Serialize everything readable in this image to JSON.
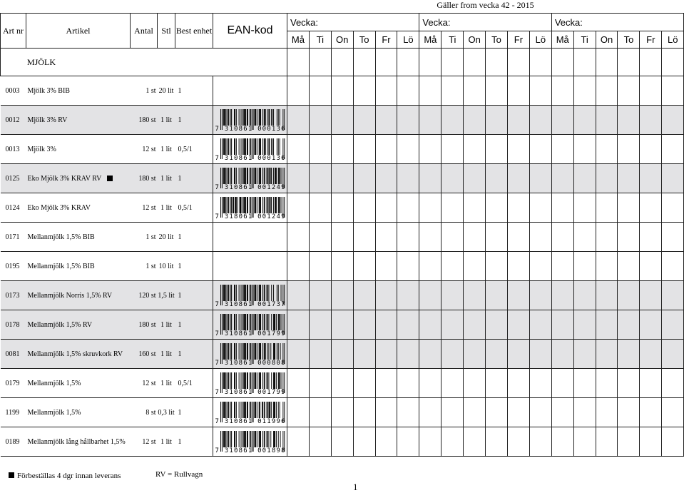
{
  "valid_text": "Gäller from vecka 42 - 2015",
  "headers": {
    "art": "Art nr",
    "artikel": "Artikel",
    "antal": "Antal",
    "stl": "Stl",
    "best": "Best enhet",
    "ean": "EAN-kod",
    "vecka": [
      "Vecka:",
      "Vecka:",
      "Vecka:"
    ],
    "days": [
      "Må",
      "Ti",
      "On",
      "To",
      "Fr",
      "Lö",
      "Må",
      "Ti",
      "On",
      "To",
      "Fr",
      "Lö",
      "Må",
      "Ti",
      "On",
      "To",
      "Fr",
      "Lö"
    ]
  },
  "section": "MJÖLK",
  "rows": [
    {
      "art": "0003",
      "name": "Mjölk 3% BIB",
      "antal": "1 st",
      "stl": "20 lit",
      "best": "1",
      "ean": "",
      "shaded": false,
      "mark": false
    },
    {
      "art": "0012",
      "name": "Mjölk 3% RV",
      "antal": "180 st",
      "stl": "1 lit",
      "best": "1",
      "ean": "7310861000136",
      "shaded": true,
      "mark": false
    },
    {
      "art": "0013",
      "name": "Mjölk 3%",
      "antal": "12 st",
      "stl": "1 lit",
      "best": "0,5/1",
      "ean": "7310861000136",
      "shaded": false,
      "mark": false
    },
    {
      "art": "0125",
      "name": "Eko Mjölk 3% KRAV RV",
      "antal": "180 st",
      "stl": "1 lit",
      "best": "1",
      "ean": "7310861001249",
      "shaded": true,
      "mark": true
    },
    {
      "art": "0124",
      "name": "Eko Mjölk 3% KRAV",
      "antal": "12 st",
      "stl": "1 lit",
      "best": "0,5/1",
      "ean": "7318061001249",
      "shaded": false,
      "mark": false
    },
    {
      "art": "0171",
      "name": "Mellanmjölk 1,5% BIB",
      "antal": "1 st",
      "stl": "20 lit",
      "best": "1",
      "ean": "",
      "shaded": false,
      "mark": false
    },
    {
      "art": "0195",
      "name": "Mellanmjölk 1,5% BIB",
      "antal": "1 st",
      "stl": "10 lit",
      "best": "1",
      "ean": "",
      "shaded": false,
      "mark": false
    },
    {
      "art": "0173",
      "name": "Mellanmjölk Norris 1,5% RV",
      "antal": "120 st",
      "stl": "1,5 lit",
      "best": "1",
      "ean": "7310861001737",
      "shaded": true,
      "mark": false,
      "stl_wrap": true
    },
    {
      "art": "0178",
      "name": "Mellanmjölk 1,5% RV",
      "antal": "180 st",
      "stl": "1 lit",
      "best": "1",
      "ean": "7310861001799",
      "shaded": true,
      "mark": false
    },
    {
      "art": "0081",
      "name": "Mellanmjölk 1,5% skruvkork RV",
      "antal": "160 st",
      "stl": "1 lit",
      "best": "1",
      "ean": "7310861000808",
      "shaded": true,
      "mark": false
    },
    {
      "art": "0179",
      "name": "Mellanmjölk 1,5%",
      "antal": "12 st",
      "stl": "1 lit",
      "best": "0,5/1",
      "ean": "7310861001799",
      "shaded": false,
      "mark": false
    },
    {
      "art": "1199",
      "name": "Mellanmjölk 1,5%",
      "antal": "8 st",
      "stl": "0,3 lit",
      "best": "1",
      "ean": "7310861011996",
      "shaded": false,
      "mark": false,
      "stl_wrap": true
    },
    {
      "art": "0189",
      "name": "Mellanmjölk lång hållbarhet 1,5%",
      "antal": "12 st",
      "stl": "1 lit",
      "best": "1",
      "ean": "7310861001898",
      "shaded": false,
      "mark": false
    }
  ],
  "legend": "Förbeställas 4 dgr innan leverans",
  "rv_note": "RV = Rullvagn",
  "page": "1",
  "colors": {
    "shade": "#e3e3e5",
    "border": "#222222"
  }
}
